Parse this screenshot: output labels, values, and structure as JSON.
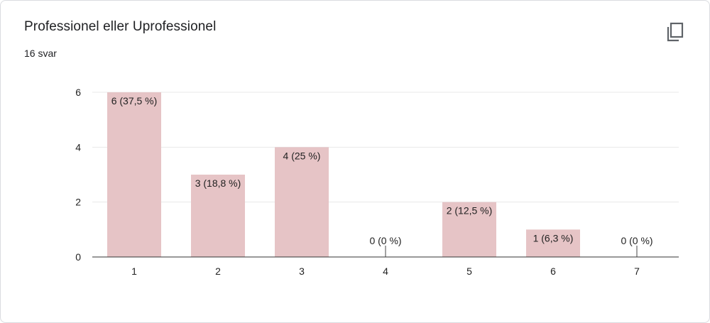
{
  "card": {
    "title": "Professionel eller Uprofessionel",
    "response_count": "16 svar",
    "copy_icon": "copy-icon"
  },
  "colors": {
    "bar": "#e6c4c6",
    "grid": "#e8e8e8",
    "axis": "#333333",
    "text": "#222222"
  },
  "chart_data": {
    "type": "bar",
    "title": "Professionel eller Uprofessionel",
    "categories": [
      "1",
      "2",
      "3",
      "4",
      "5",
      "6",
      "7"
    ],
    "values": [
      6,
      3,
      4,
      0,
      2,
      1,
      0
    ],
    "data_labels": [
      "6 (37,5 %)",
      "3 (18,8 %)",
      "4 (25 %)",
      "0 (0 %)",
      "2 (12,5 %)",
      "1 (6,3 %)",
      "0 (0 %)"
    ],
    "y_ticks": [
      0,
      2,
      4,
      6
    ],
    "ylim": [
      0,
      6
    ],
    "grid": true,
    "legend": "none"
  }
}
